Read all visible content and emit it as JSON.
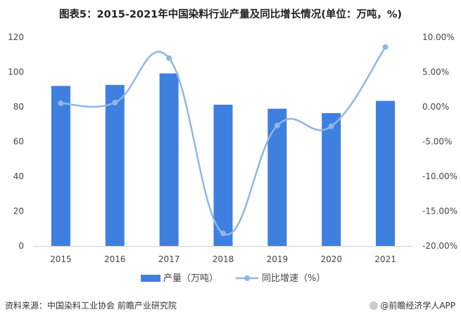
{
  "title": "图表5：2015-2021年中国染料行业产量及同比增长情况(单位：万吨，%)",
  "chart_data": {
    "type": "bar",
    "categories": [
      "2015",
      "2016",
      "2017",
      "2018",
      "2019",
      "2020",
      "2021"
    ],
    "series": [
      {
        "name": "产量（万吨）",
        "type": "bar",
        "axis": "left",
        "values": [
          92,
          92.6,
          99.2,
          81.2,
          78.9,
          76.4,
          83.4
        ],
        "color": "#3f7fe0"
      },
      {
        "name": "同比增速（%）",
        "type": "line",
        "axis": "right",
        "values": [
          0.5,
          0.6,
          7.0,
          -18.2,
          -2.7,
          -2.8,
          8.6
        ],
        "color": "#8fb7e6"
      }
    ],
    "y_left": {
      "min": 0,
      "max": 120,
      "ticks": [
        0,
        20,
        40,
        60,
        80,
        100,
        120
      ]
    },
    "y_right": {
      "min": -20,
      "max": 10,
      "ticks": [
        "-20.00%",
        "-15.00%",
        "-10.00%",
        "-5.00%",
        "0.00%",
        "5.00%",
        "10.00%"
      ]
    },
    "legend": "bottom"
  },
  "footer": {
    "source": "资料来源：中国染料工业协会 前瞻产业研究院",
    "brand": "@前瞻经济学人APP"
  }
}
